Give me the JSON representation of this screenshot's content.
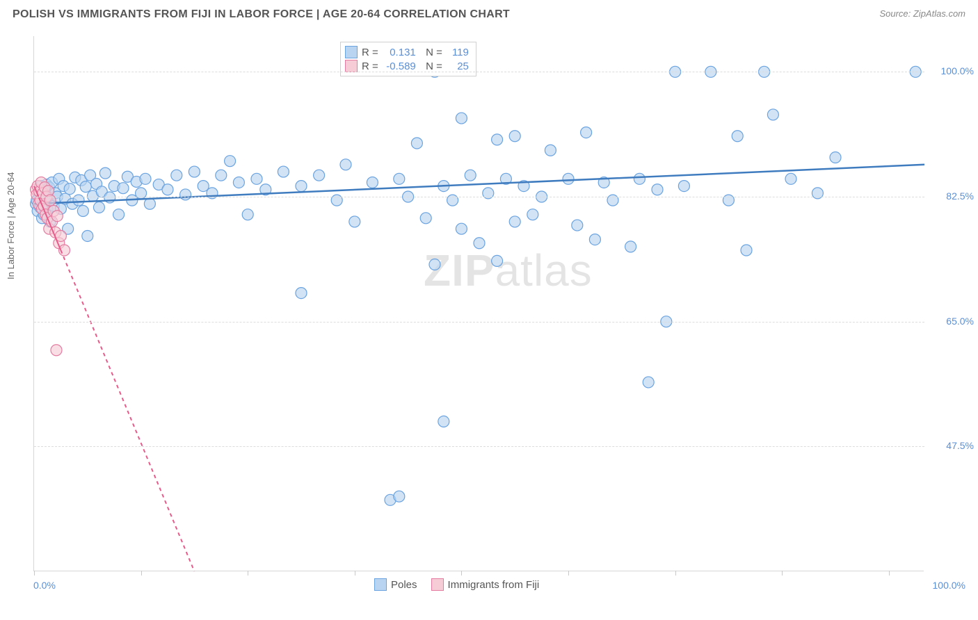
{
  "title": "POLISH VS IMMIGRANTS FROM FIJI IN LABOR FORCE | AGE 20-64 CORRELATION CHART",
  "source": "Source: ZipAtlas.com",
  "watermark_bold": "ZIP",
  "watermark_rest": "atlas",
  "chart": {
    "type": "scatter",
    "ylabel": "In Labor Force | Age 20-64",
    "xlim": [
      0,
      100
    ],
    "ylim": [
      30,
      105
    ],
    "x_axis_min_label": "0.0%",
    "x_axis_max_label": "100.0%",
    "background": "#ffffff",
    "grid_color": "#dcdcdc",
    "axis_color": "#d6d6d6",
    "ytick_labels": [
      {
        "v": 100.0,
        "label": "100.0%"
      },
      {
        "v": 82.5,
        "label": "82.5%"
      },
      {
        "v": 65.0,
        "label": "65.0%"
      },
      {
        "v": 47.5,
        "label": "47.5%"
      }
    ],
    "xtick_positions": [
      0,
      12,
      24,
      36,
      48,
      60,
      72,
      84,
      96
    ],
    "marker_radius": 8,
    "marker_stroke_width": 1.2,
    "series": [
      {
        "name": "Poles",
        "fill": "#b9d4f0",
        "stroke": "#6aa3e0",
        "line_color": "#3f7bbf",
        "line_width": 2.5,
        "line_dash": "none",
        "R": "0.131",
        "N": "119",
        "trend": {
          "x1": 0,
          "y1": 81.5,
          "x2": 100,
          "y2": 87.0
        },
        "points": [
          [
            0.2,
            81.5
          ],
          [
            0.3,
            82.0
          ],
          [
            0.4,
            80.5
          ],
          [
            0.5,
            83.0
          ],
          [
            0.6,
            82.5
          ],
          [
            0.7,
            81.0
          ],
          [
            0.8,
            84.0
          ],
          [
            0.9,
            79.5
          ],
          [
            1.0,
            82.8
          ],
          [
            1.1,
            80.0
          ],
          [
            1.2,
            83.5
          ],
          [
            1.3,
            81.8
          ],
          [
            1.4,
            84.2
          ],
          [
            1.5,
            80.7
          ],
          [
            1.6,
            82.1
          ],
          [
            1.7,
            83.8
          ],
          [
            1.8,
            79.0
          ],
          [
            2.0,
            84.5
          ],
          [
            2.2,
            81.2
          ],
          [
            2.4,
            83.0
          ],
          [
            2.6,
            82.5
          ],
          [
            2.8,
            85.0
          ],
          [
            3.0,
            80.8
          ],
          [
            3.3,
            84.0
          ],
          [
            3.5,
            82.2
          ],
          [
            3.8,
            78.0
          ],
          [
            4.0,
            83.6
          ],
          [
            4.3,
            81.5
          ],
          [
            4.6,
            85.2
          ],
          [
            5.0,
            82.0
          ],
          [
            5.3,
            84.8
          ],
          [
            5.5,
            80.5
          ],
          [
            5.8,
            83.9
          ],
          [
            6.0,
            77.0
          ],
          [
            6.3,
            85.5
          ],
          [
            6.6,
            82.6
          ],
          [
            7.0,
            84.3
          ],
          [
            7.3,
            81.0
          ],
          [
            7.6,
            83.2
          ],
          [
            8.0,
            85.8
          ],
          [
            8.5,
            82.4
          ],
          [
            9.0,
            84.0
          ],
          [
            9.5,
            80.0
          ],
          [
            10.0,
            83.7
          ],
          [
            10.5,
            85.3
          ],
          [
            11.0,
            82.0
          ],
          [
            11.5,
            84.6
          ],
          [
            12.0,
            83.0
          ],
          [
            12.5,
            85.0
          ],
          [
            13.0,
            81.5
          ],
          [
            14.0,
            84.2
          ],
          [
            15.0,
            83.5
          ],
          [
            16.0,
            85.5
          ],
          [
            17.0,
            82.8
          ],
          [
            18.0,
            86.0
          ],
          [
            19.0,
            84.0
          ],
          [
            20.0,
            83.0
          ],
          [
            21.0,
            85.5
          ],
          [
            22.0,
            87.5
          ],
          [
            23.0,
            84.5
          ],
          [
            24.0,
            80.0
          ],
          [
            25.0,
            85.0
          ],
          [
            26.0,
            83.5
          ],
          [
            28.0,
            86.0
          ],
          [
            30.0,
            69.0
          ],
          [
            30.0,
            84.0
          ],
          [
            32.0,
            85.5
          ],
          [
            34.0,
            82.0
          ],
          [
            35.0,
            87.0
          ],
          [
            36.0,
            79.0
          ],
          [
            38.0,
            84.5
          ],
          [
            40.0,
            40.0
          ],
          [
            41.0,
            40.5
          ],
          [
            41.0,
            85.0
          ],
          [
            42.0,
            82.5
          ],
          [
            43.0,
            90.0
          ],
          [
            44.0,
            79.5
          ],
          [
            45.0,
            73.0
          ],
          [
            45.0,
            100.0
          ],
          [
            46.0,
            51.0
          ],
          [
            46.0,
            84.0
          ],
          [
            47.0,
            82.0
          ],
          [
            48.0,
            93.5
          ],
          [
            48.0,
            78.0
          ],
          [
            49.0,
            85.5
          ],
          [
            50.0,
            76.0
          ],
          [
            51.0,
            83.0
          ],
          [
            52.0,
            90.5
          ],
          [
            52.0,
            73.5
          ],
          [
            53.0,
            85.0
          ],
          [
            54.0,
            91.0
          ],
          [
            54.0,
            79.0
          ],
          [
            55.0,
            84.0
          ],
          [
            56.0,
            80.0
          ],
          [
            57.0,
            82.5
          ],
          [
            58.0,
            89.0
          ],
          [
            60.0,
            85.0
          ],
          [
            61.0,
            78.5
          ],
          [
            62.0,
            91.5
          ],
          [
            63.0,
            76.5
          ],
          [
            64.0,
            84.5
          ],
          [
            65.0,
            82.0
          ],
          [
            67.0,
            75.5
          ],
          [
            68.0,
            85.0
          ],
          [
            69.0,
            56.5
          ],
          [
            70.0,
            83.5
          ],
          [
            71.0,
            65.0
          ],
          [
            72.0,
            100.0
          ],
          [
            73.0,
            84.0
          ],
          [
            76.0,
            100.0
          ],
          [
            78.0,
            82.0
          ],
          [
            79.0,
            91.0
          ],
          [
            80.0,
            75.0
          ],
          [
            82.0,
            100.0
          ],
          [
            83.0,
            94.0
          ],
          [
            85.0,
            85.0
          ],
          [
            88.0,
            83.0
          ],
          [
            90.0,
            88.0
          ],
          [
            99.0,
            100.0
          ]
        ]
      },
      {
        "name": "Immigrants from Fiji",
        "fill": "#f6cdd7",
        "stroke": "#e37ca0",
        "line_color": "#e85a8a",
        "line_width": 2.0,
        "line_dash": "5,5",
        "solid_until_x": 3.0,
        "R": "-0.589",
        "N": "25",
        "trend": {
          "x1": 0,
          "y1": 84.0,
          "x2": 18,
          "y2": 30.0
        },
        "points": [
          [
            0.2,
            83.5
          ],
          [
            0.3,
            82.8
          ],
          [
            0.4,
            84.0
          ],
          [
            0.5,
            81.5
          ],
          [
            0.6,
            83.2
          ],
          [
            0.7,
            82.0
          ],
          [
            0.8,
            84.5
          ],
          [
            0.9,
            80.8
          ],
          [
            1.0,
            83.0
          ],
          [
            1.1,
            81.2
          ],
          [
            1.2,
            83.8
          ],
          [
            1.3,
            80.0
          ],
          [
            1.4,
            82.5
          ],
          [
            1.5,
            79.5
          ],
          [
            1.6,
            83.3
          ],
          [
            1.7,
            78.0
          ],
          [
            1.8,
            82.0
          ],
          [
            2.0,
            79.0
          ],
          [
            2.2,
            80.5
          ],
          [
            2.4,
            77.5
          ],
          [
            2.6,
            79.8
          ],
          [
            2.8,
            76.0
          ],
          [
            3.0,
            77.0
          ],
          [
            3.4,
            75.0
          ],
          [
            2.5,
            61.0
          ]
        ]
      }
    ],
    "legend_items": [
      {
        "label": "Poles",
        "fill": "#b9d4f0",
        "stroke": "#6aa3e0"
      },
      {
        "label": "Immigrants from Fiji",
        "fill": "#f6cdd7",
        "stroke": "#e37ca0"
      }
    ]
  }
}
